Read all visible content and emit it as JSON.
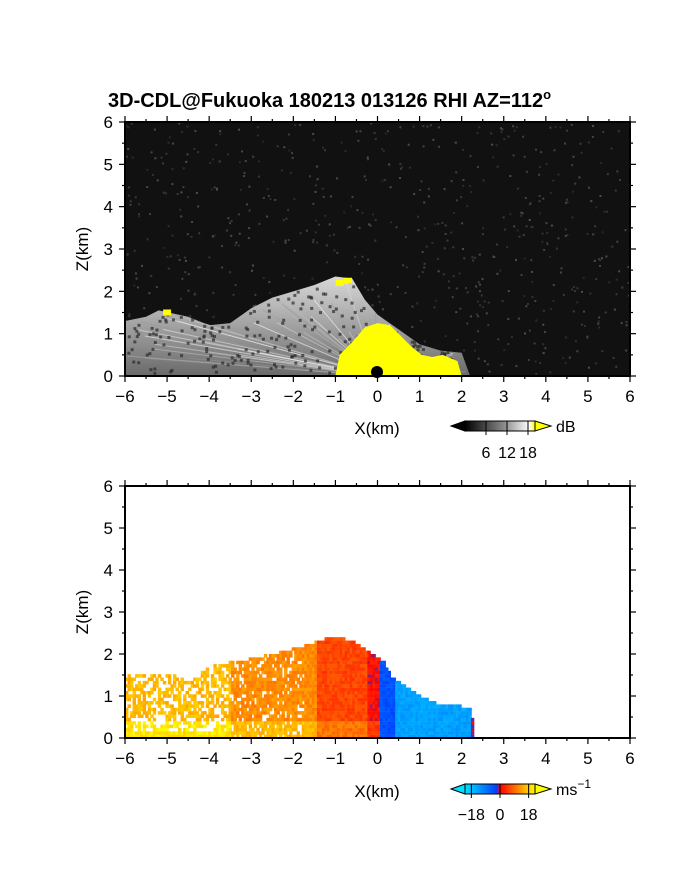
{
  "chart_data": [
    {
      "type": "heatmap",
      "title": "3D-CDL@Fukuoka 180213 013126 RHI AZ=112",
      "title_superscript": "o",
      "xlabel": "X(km)",
      "ylabel": "Z(km)",
      "xlim": [
        -6,
        6
      ],
      "ylim": [
        0,
        6
      ],
      "xticks": [
        "-6",
        "-5",
        "-4",
        "-3",
        "-2",
        "-1",
        "0",
        "1",
        "2",
        "3",
        "4",
        "5",
        "6"
      ],
      "yticks": [
        "0",
        "1",
        "2",
        "3",
        "4",
        "5",
        "6"
      ],
      "background": "#111111",
      "colorbar": {
        "unit": "dB",
        "tick_labels": [
          "6",
          "12",
          "18"
        ],
        "tick_values": [
          6,
          12,
          18
        ],
        "range": [
          0,
          20
        ],
        "colors": [
          "#000000",
          "#ffffff",
          "#ffff00"
        ]
      },
      "echo_top_profile": [
        {
          "x": -6.0,
          "z": 1.3
        },
        {
          "x": -5.5,
          "z": 1.4
        },
        {
          "x": -5.2,
          "z": 1.55
        },
        {
          "x": -4.5,
          "z": 1.4
        },
        {
          "x": -4.0,
          "z": 1.2
        },
        {
          "x": -3.5,
          "z": 1.25
        },
        {
          "x": -3.0,
          "z": 1.6
        },
        {
          "x": -2.5,
          "z": 1.85
        },
        {
          "x": -2.0,
          "z": 2.0
        },
        {
          "x": -1.5,
          "z": 2.15
        },
        {
          "x": -1.0,
          "z": 2.35
        },
        {
          "x": -0.6,
          "z": 2.3
        },
        {
          "x": -0.3,
          "z": 1.8
        },
        {
          "x": 0.0,
          "z": 1.45
        },
        {
          "x": 0.5,
          "z": 1.1
        },
        {
          "x": 1.0,
          "z": 0.75
        },
        {
          "x": 1.5,
          "z": 0.6
        },
        {
          "x": 2.0,
          "z": 0.55
        },
        {
          "x": 2.2,
          "z": 0.0
        }
      ],
      "saturated_region": {
        "x_range": [
          -1.0,
          1.3
        ],
        "z_range": [
          0.0,
          1.3
        ],
        "value_db": 18
      }
    },
    {
      "type": "heatmap",
      "title": "",
      "xlabel": "X(km)",
      "ylabel": "Z(km)",
      "xlim": [
        -6,
        6
      ],
      "ylim": [
        0,
        6
      ],
      "xticks": [
        "-6",
        "-5",
        "-4",
        "-3",
        "-2",
        "-1",
        "0",
        "1",
        "2",
        "3",
        "4",
        "5",
        "6"
      ],
      "yticks": [
        "0",
        "1",
        "2",
        "3",
        "4",
        "5",
        "6"
      ],
      "background": "#ffffff",
      "colorbar": {
        "unit": "ms",
        "unit_superscript": "−1",
        "tick_labels": [
          "−18",
          "0",
          "18"
        ],
        "tick_values": [
          -18,
          0,
          18
        ],
        "range": [
          -22,
          22
        ],
        "colors": [
          "#00e0ff",
          "#0040ff",
          "#ff0000",
          "#ff8000",
          "#ffff00"
        ]
      },
      "echo_top_profile": [
        {
          "x": -6.0,
          "z": 1.45
        },
        {
          "x": -5.0,
          "z": 1.5
        },
        {
          "x": -4.5,
          "z": 1.3
        },
        {
          "x": -4.0,
          "z": 1.7
        },
        {
          "x": -3.0,
          "z": 1.85
        },
        {
          "x": -2.0,
          "z": 2.1
        },
        {
          "x": -1.5,
          "z": 2.25
        },
        {
          "x": -1.0,
          "z": 2.4
        },
        {
          "x": -0.5,
          "z": 2.2
        },
        {
          "x": -0.2,
          "z": 2.0
        },
        {
          "x": 0.1,
          "z": 1.8
        },
        {
          "x": 0.3,
          "z": 1.4
        },
        {
          "x": 0.5,
          "z": 1.3
        },
        {
          "x": 1.0,
          "z": 0.95
        },
        {
          "x": 1.5,
          "z": 0.75
        },
        {
          "x": 2.2,
          "z": 0.7
        },
        {
          "x": 2.25,
          "z": 0.0
        }
      ],
      "velocity_regions": [
        {
          "x_range": [
            -6.0,
            -3.5
          ],
          "velocity_ms": 16
        },
        {
          "x_range": [
            -3.5,
            -1.5
          ],
          "velocity_ms": 12
        },
        {
          "x_range": [
            -1.5,
            -0.3
          ],
          "velocity_ms": 6
        },
        {
          "x_range": [
            -0.3,
            0.0
          ],
          "velocity_ms": 1
        },
        {
          "x_range": [
            0.0,
            0.4
          ],
          "velocity_ms": -4
        },
        {
          "x_range": [
            0.4,
            2.2
          ],
          "velocity_ms": -14
        }
      ]
    }
  ]
}
